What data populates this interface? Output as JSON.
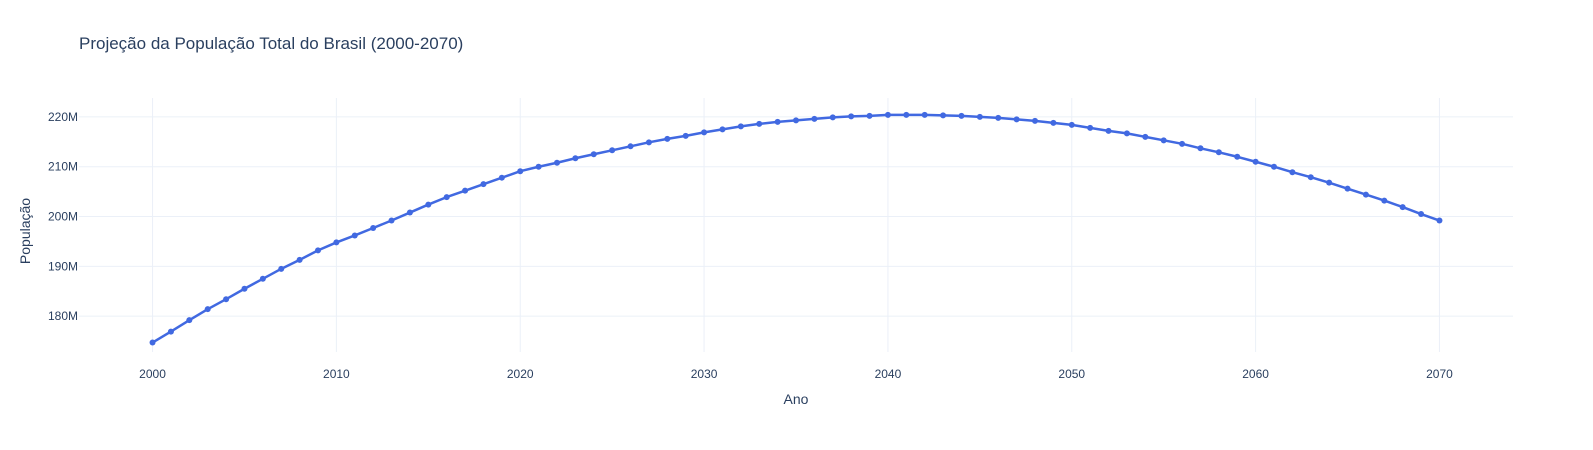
{
  "chart_data": {
    "type": "line",
    "title": "Projeção da População Total do Brasil (2000-2070)",
    "xlabel": "Ano",
    "ylabel": "População",
    "xlim": [
      1996,
      2074
    ],
    "ylim": [
      172800000,
      223800000
    ],
    "x_ticks": [
      2000,
      2010,
      2020,
      2030,
      2040,
      2050,
      2060,
      2070
    ],
    "y_ticks": [
      180000000,
      190000000,
      200000000,
      210000000,
      220000000
    ],
    "y_tick_labels": [
      "180M",
      "190M",
      "200M",
      "210M",
      "220M"
    ],
    "grid": true,
    "line_color": "#4169e1",
    "x": [
      2000,
      2001,
      2002,
      2003,
      2004,
      2005,
      2006,
      2007,
      2008,
      2009,
      2010,
      2011,
      2012,
      2013,
      2014,
      2015,
      2016,
      2017,
      2018,
      2019,
      2020,
      2021,
      2022,
      2023,
      2024,
      2025,
      2026,
      2027,
      2028,
      2029,
      2030,
      2031,
      2032,
      2033,
      2034,
      2035,
      2036,
      2037,
      2038,
      2039,
      2040,
      2041,
      2042,
      2043,
      2044,
      2045,
      2046,
      2047,
      2048,
      2049,
      2050,
      2051,
      2052,
      2053,
      2054,
      2055,
      2056,
      2057,
      2058,
      2059,
      2060,
      2061,
      2062,
      2063,
      2064,
      2065,
      2066,
      2067,
      2068,
      2069,
      2070
    ],
    "values": [
      174700000,
      176900000,
      179200000,
      181400000,
      183400000,
      185500000,
      187500000,
      189500000,
      191300000,
      193200000,
      194800000,
      196200000,
      197700000,
      199200000,
      200800000,
      202400000,
      203900000,
      205200000,
      206500000,
      207800000,
      209100000,
      210000000,
      210800000,
      211700000,
      212500000,
      213300000,
      214100000,
      214900000,
      215600000,
      216200000,
      216900000,
      217500000,
      218100000,
      218600000,
      219000000,
      219300000,
      219600000,
      219900000,
      220100000,
      220200000,
      220400000,
      220400000,
      220400000,
      220300000,
      220200000,
      220000000,
      219800000,
      219500000,
      219200000,
      218800000,
      218400000,
      217800000,
      217200000,
      216700000,
      216000000,
      215300000,
      214600000,
      213700000,
      212900000,
      212000000,
      211000000,
      210000000,
      208900000,
      207900000,
      206800000,
      205600000,
      204400000,
      203200000,
      201900000,
      200500000,
      199200000
    ]
  }
}
